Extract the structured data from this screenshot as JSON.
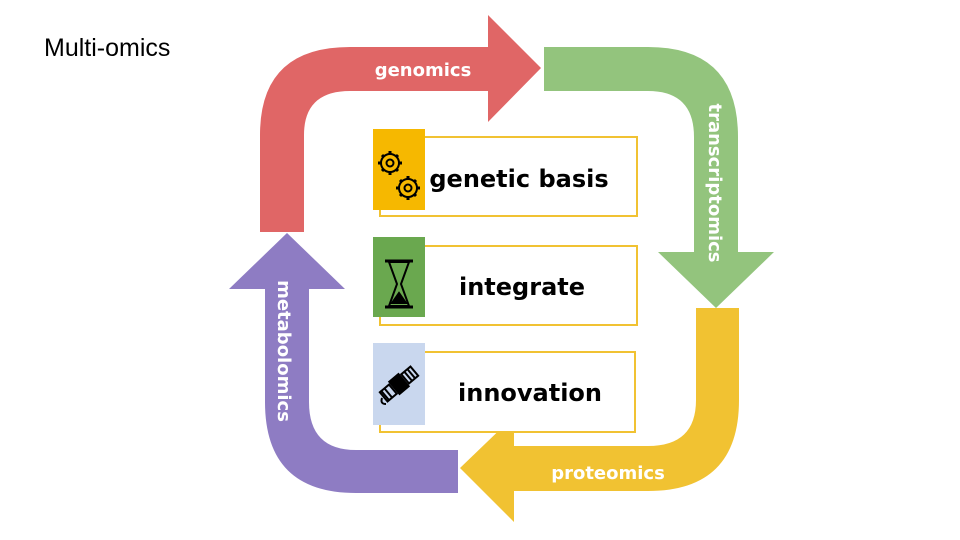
{
  "title": "Multi-omics",
  "colors": {
    "genomics": "#e06666",
    "transcriptomics": "#93c47d",
    "proteomics": "#f1c232",
    "metabolomics": "#8e7cc3",
    "card_border": "#f1c232"
  },
  "arrows": [
    {
      "label": "genomics",
      "color_key": "genomics"
    },
    {
      "label": "transcriptomics",
      "color_key": "transcriptomics"
    },
    {
      "label": "proteomics",
      "color_key": "proteomics"
    },
    {
      "label": "metabolomics",
      "color_key": "metabolomics"
    }
  ],
  "cards": [
    {
      "text": "genetic basis",
      "icon": "gears-icon",
      "icon_bg": "#f6b800"
    },
    {
      "text": "integrate",
      "icon": "hourglass-icon",
      "icon_bg": "#6aa84f"
    },
    {
      "text": "innovation",
      "icon": "satellite-icon",
      "icon_bg": "#c9d7ee"
    }
  ]
}
